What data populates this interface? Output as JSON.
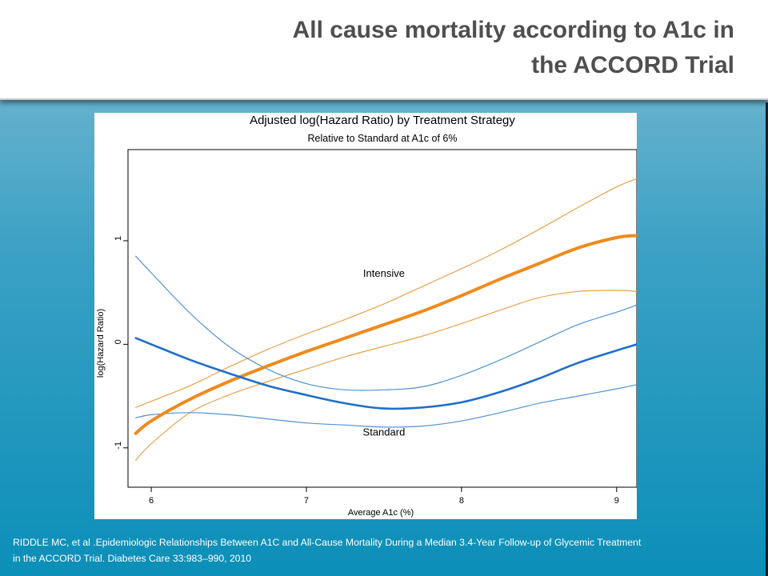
{
  "slide": {
    "title_line1": "All cause mortality according to A1c in",
    "title_line2": "the ACCORD Trial",
    "citation_line1": "RIDDLE MC, et al .Epidemiologic Relationships Between A1C and All-Cause Mortality During a Median 3.4-Year Follow-up of Glycemic Treatment",
    "citation_line2": "in the ACCORD Trial. Diabetes Care 33:983–990, 2010"
  },
  "colors": {
    "intensive": "#f08a1c",
    "intensive_ci": "#e8a24a",
    "standard": "#1f6fc8",
    "standard_ci": "#4f93d6"
  },
  "chart_data": {
    "type": "line",
    "title": "Adjusted log(Hazard Ratio) by Treatment Strategy",
    "subtitle": "Relative to Standard at A1c of 6%",
    "xlabel": "Average A1c (%)",
    "ylabel": "log(Hazard Ratio)",
    "xlim": [
      5.85,
      9.13
    ],
    "ylim": [
      -1.38,
      1.88
    ],
    "x_ticks": [
      6,
      7,
      8,
      9
    ],
    "y_ticks": [
      -1,
      0,
      1
    ],
    "annotations": [
      {
        "text": "Intensive",
        "x": 7.5,
        "y": 0.65
      },
      {
        "text": "Standard",
        "x": 7.5,
        "y": -0.88
      }
    ],
    "series": [
      {
        "name": "Intensive",
        "band": "estimate",
        "x": [
          5.9,
          6.0,
          6.25,
          6.5,
          6.75,
          7.0,
          7.25,
          7.5,
          7.75,
          8.0,
          8.25,
          8.5,
          8.75,
          9.0,
          9.13
        ],
        "y": [
          -0.86,
          -0.74,
          -0.53,
          -0.36,
          -0.21,
          -0.07,
          0.06,
          0.19,
          0.32,
          0.47,
          0.63,
          0.78,
          0.93,
          1.03,
          1.05
        ]
      },
      {
        "name": "Intensive upper CI",
        "band": "ci",
        "x": [
          5.9,
          6.0,
          6.25,
          6.5,
          6.75,
          7.0,
          7.25,
          7.5,
          7.75,
          8.0,
          8.25,
          8.5,
          8.75,
          9.0,
          9.13
        ],
        "y": [
          -0.61,
          -0.55,
          -0.4,
          -0.22,
          -0.05,
          0.1,
          0.24,
          0.39,
          0.56,
          0.73,
          0.91,
          1.11,
          1.32,
          1.52,
          1.6
        ]
      },
      {
        "name": "Intensive lower CI",
        "band": "ci",
        "x": [
          5.9,
          6.0,
          6.25,
          6.5,
          6.75,
          7.0,
          7.25,
          7.5,
          7.75,
          8.0,
          8.25,
          8.5,
          8.75,
          9.0,
          9.13
        ],
        "y": [
          -1.12,
          -0.96,
          -0.66,
          -0.49,
          -0.36,
          -0.24,
          -0.12,
          -0.02,
          0.08,
          0.2,
          0.33,
          0.45,
          0.51,
          0.52,
          0.51
        ]
      },
      {
        "name": "Standard",
        "band": "estimate",
        "x": [
          5.9,
          6.0,
          6.25,
          6.5,
          6.75,
          7.0,
          7.25,
          7.5,
          7.75,
          8.0,
          8.25,
          8.5,
          8.75,
          9.0,
          9.13
        ],
        "y": [
          0.06,
          0.0,
          -0.15,
          -0.28,
          -0.4,
          -0.49,
          -0.57,
          -0.62,
          -0.61,
          -0.56,
          -0.46,
          -0.33,
          -0.18,
          -0.06,
          0.0
        ]
      },
      {
        "name": "Standard upper CI",
        "band": "ci",
        "x": [
          5.9,
          6.0,
          6.25,
          6.5,
          6.75,
          7.0,
          7.25,
          7.5,
          7.75,
          8.0,
          8.25,
          8.5,
          8.75,
          9.0,
          9.13
        ],
        "y": [
          0.85,
          0.69,
          0.3,
          -0.02,
          -0.24,
          -0.38,
          -0.44,
          -0.44,
          -0.41,
          -0.3,
          -0.15,
          0.02,
          0.19,
          0.31,
          0.38
        ]
      },
      {
        "name": "Standard lower CI",
        "band": "ci",
        "x": [
          5.9,
          6.0,
          6.25,
          6.5,
          6.75,
          7.0,
          7.25,
          7.5,
          7.75,
          8.0,
          8.25,
          8.5,
          8.75,
          9.0,
          9.13
        ],
        "y": [
          -0.71,
          -0.68,
          -0.66,
          -0.68,
          -0.72,
          -0.76,
          -0.78,
          -0.8,
          -0.79,
          -0.74,
          -0.66,
          -0.57,
          -0.5,
          -0.43,
          -0.39
        ]
      }
    ]
  }
}
